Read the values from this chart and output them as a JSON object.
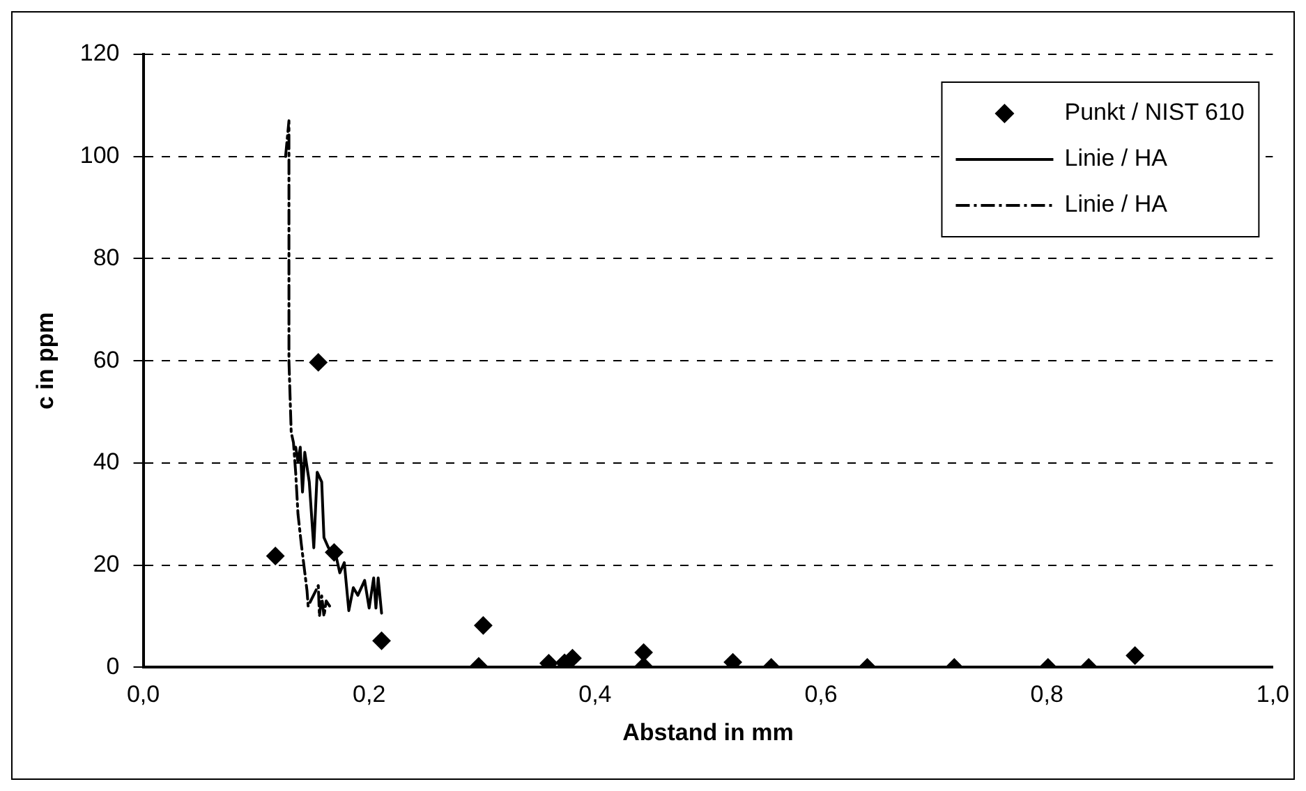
{
  "chart_data": {
    "type": "scatter",
    "xlabel": "Abstand in mm",
    "ylabel": "c in ppm",
    "xlim": [
      0,
      1
    ],
    "ylim": [
      0,
      120
    ],
    "xticks": [
      {
        "value": 0,
        "label": "0,0"
      },
      {
        "value": 0.2,
        "label": "0,2"
      },
      {
        "value": 0.4,
        "label": "0,4"
      },
      {
        "value": 0.6,
        "label": "0,6"
      },
      {
        "value": 0.8,
        "label": "0,8"
      },
      {
        "value": 1,
        "label": "1,0"
      }
    ],
    "yticks": [
      0,
      20,
      40,
      60,
      80,
      100,
      120
    ],
    "grid": "y",
    "legend": "top right",
    "series": [
      {
        "name": "Punkt / NIST 610",
        "type": "scatter",
        "marker": "diamond",
        "color": "#000000",
        "x": [
          0.117,
          0.155,
          0.169,
          0.211,
          0.297,
          0.301,
          0.359,
          0.373,
          0.38,
          0.443,
          0.443,
          0.522,
          0.556,
          0.641,
          0.718,
          0.801,
          0.837,
          0.878
        ],
        "values": [
          21.8,
          59.7,
          22.5,
          5.2,
          0.2,
          8.2,
          0.8,
          0.9,
          1.8,
          2.9,
          0.2,
          1.0,
          0,
          0,
          0,
          0,
          0,
          2.3
        ]
      },
      {
        "name": "Linie / HA",
        "type": "line",
        "marker": "none",
        "line_style": "solid",
        "color": "#000000",
        "x": [
          0.135,
          0.137,
          0.139,
          0.141,
          0.143,
          0.147,
          0.151,
          0.154,
          0.158,
          0.16,
          0.164,
          0.17,
          0.174,
          0.178,
          0.182,
          0.186,
          0.19,
          0.196,
          0.2,
          0.204,
          0.206,
          0.208,
          0.211
        ],
        "values": [
          43.1,
          40.2,
          43.1,
          34.3,
          42.1,
          36.3,
          23.4,
          38.2,
          36.3,
          25.4,
          23.4,
          22.5,
          18.5,
          20.5,
          11.1,
          15.6,
          14.1,
          17.0,
          11.6,
          17.5,
          11.6,
          17.5,
          10.6
        ]
      },
      {
        "name": "Linie / HA",
        "type": "line",
        "marker": "none",
        "line_style": "dashdot",
        "color": "#000000",
        "x": [
          0.126,
          0.129,
          0.129,
          0.131,
          0.133,
          0.135,
          0.137,
          0.14,
          0.145,
          0.146,
          0.155,
          0.156,
          0.158,
          0.16,
          0.162,
          0.165
        ],
        "values": [
          100,
          107,
          60,
          46,
          44,
          38,
          30,
          24,
          15,
          12,
          16,
          10,
          14,
          10,
          13,
          12
        ]
      }
    ]
  }
}
